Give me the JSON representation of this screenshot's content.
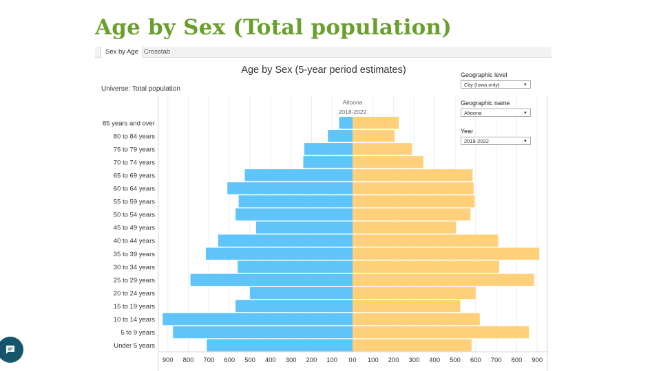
{
  "slide": {
    "title": "Age by Sex (Total population)"
  },
  "tabs": [
    {
      "label": "Sex by Age"
    },
    {
      "label": "Crosstab"
    }
  ],
  "filters": {
    "geographic_level": {
      "label": "Geographic level",
      "value": "City (Iowa only)"
    },
    "geographic_name": {
      "label": "Geographic name",
      "value": "Altoona"
    },
    "year": {
      "label": "Year",
      "value": "2018-2022"
    }
  },
  "colors": {
    "male": "#5ec4fa",
    "female": "#fed07a",
    "title_green": "#6a9f2e",
    "fab": "#17556d"
  },
  "chat_button": {
    "icon": "chat-icon"
  },
  "chart_data": {
    "type": "bar",
    "title": "Age by Sex (5-year period estimates)",
    "subtitle": "Universe: Total population",
    "header_geo": "Altoona",
    "header_period": "2018-2022",
    "categories": [
      "85 years and over",
      "80 to 84 years",
      "75 to 79 years",
      "70 to 74 years",
      "65 to 69 years",
      "60 to 64 years",
      "55 to 59 years",
      "50 to 54 years",
      "45 to 49 years",
      "40 to 44 years",
      "35 to 39 years",
      "30 to 34 years",
      "25 to 29 years",
      "20 to 24 years",
      "15 to 19 years",
      "10 to 14 years",
      "5 to 9 years",
      "Under 5 years"
    ],
    "series": [
      {
        "values": [
          65,
          120,
          235,
          240,
          525,
          610,
          555,
          570,
          470,
          655,
          715,
          560,
          790,
          500,
          570,
          925,
          875,
          710
        ]
      },
      {
        "values": [
          225,
          205,
          290,
          345,
          585,
          590,
          595,
          575,
          505,
          710,
          910,
          715,
          885,
          600,
          525,
          620,
          860,
          580
        ]
      }
    ],
    "xlim": [
      -900,
      900
    ],
    "xticks": [
      "900",
      "800",
      "700",
      "600",
      "500",
      "400",
      "300",
      "200",
      "100",
      "0",
      "0",
      "100",
      "200",
      "300",
      "400",
      "500",
      "600",
      "700",
      "800",
      "900"
    ],
    "grid": true
  }
}
